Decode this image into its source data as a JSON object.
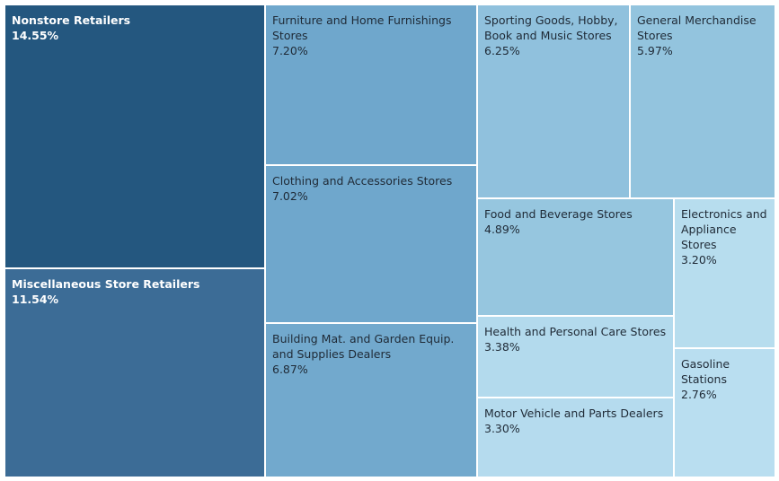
{
  "chart_data": {
    "type": "treemap",
    "value_format": "percent",
    "items": [
      {
        "label": "Nonstore Retailers",
        "value": 14.55,
        "display": "14.55%",
        "color": "#24577f"
      },
      {
        "label": "Miscellaneous Store Retailers",
        "value": 11.54,
        "display": "11.54%",
        "color": "#3c6c96"
      },
      {
        "label": "Furniture and Home Furnishings Stores",
        "value": 7.2,
        "display": "7.20%",
        "color": "#6fa7cc"
      },
      {
        "label": "Clothing and Accessories Stores",
        "value": 7.02,
        "display": "7.02%",
        "color": "#6fa7cc"
      },
      {
        "label": "Building Mat. and Garden Equip. and Supplies Dealers",
        "value": 6.87,
        "display": "6.87%",
        "color": "#72a9cd"
      },
      {
        "label": "Sporting Goods, Hobby, Book and Music Stores",
        "value": 6.25,
        "display": "6.25%",
        "color": "#90c1dd"
      },
      {
        "label": "General Merchandise Stores",
        "value": 5.97,
        "display": "5.97%",
        "color": "#93c4de"
      },
      {
        "label": "Food and Beverage Stores",
        "value": 4.89,
        "display": "4.89%",
        "color": "#96c6df"
      },
      {
        "label": "Electronics and Appliance Stores",
        "value": 3.2,
        "display": "3.20%",
        "color": "#b7ddee"
      },
      {
        "label": "Health and Personal Care Stores",
        "value": 3.38,
        "display": "3.38%",
        "color": "#b3daed"
      },
      {
        "label": "Motor Vehicle and Parts Dealers",
        "value": 3.3,
        "display": "3.30%",
        "color": "#b5dbee"
      },
      {
        "label": "Gasoline Stations",
        "value": 2.76,
        "display": "2.76%",
        "color": "#b9def0"
      }
    ]
  }
}
